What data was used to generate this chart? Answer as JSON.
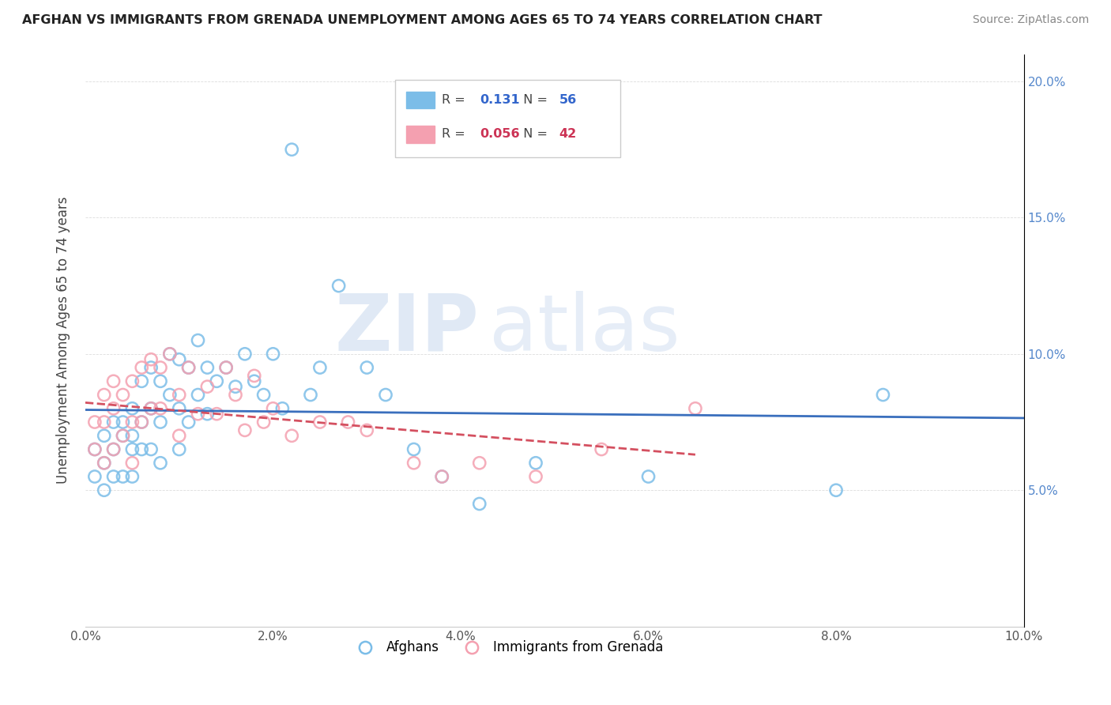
{
  "title": "AFGHAN VS IMMIGRANTS FROM GRENADA UNEMPLOYMENT AMONG AGES 65 TO 74 YEARS CORRELATION CHART",
  "source": "Source: ZipAtlas.com",
  "ylabel": "Unemployment Among Ages 65 to 74 years",
  "xlim": [
    0.0,
    0.1
  ],
  "ylim": [
    0.0,
    0.21
  ],
  "legend1_r": "0.131",
  "legend1_n": "56",
  "legend2_r": "0.056",
  "legend2_n": "42",
  "color_afghan": "#7bbde8",
  "color_grenada": "#f4a0b0",
  "trendline_afghan_color": "#3a6fbd",
  "trendline_grenada_color": "#d45060",
  "watermark_zip": "ZIP",
  "watermark_atlas": "atlas",
  "afghan_x": [
    0.001,
    0.001,
    0.002,
    0.002,
    0.002,
    0.003,
    0.003,
    0.003,
    0.004,
    0.004,
    0.004,
    0.005,
    0.005,
    0.005,
    0.005,
    0.006,
    0.006,
    0.006,
    0.007,
    0.007,
    0.007,
    0.008,
    0.008,
    0.008,
    0.009,
    0.009,
    0.01,
    0.01,
    0.01,
    0.011,
    0.011,
    0.012,
    0.012,
    0.013,
    0.013,
    0.014,
    0.015,
    0.016,
    0.017,
    0.018,
    0.019,
    0.02,
    0.021,
    0.022,
    0.024,
    0.025,
    0.027,
    0.03,
    0.032,
    0.035,
    0.038,
    0.042,
    0.048,
    0.06,
    0.08,
    0.085
  ],
  "afghan_y": [
    0.065,
    0.055,
    0.07,
    0.06,
    0.05,
    0.075,
    0.065,
    0.055,
    0.075,
    0.07,
    0.055,
    0.08,
    0.07,
    0.065,
    0.055,
    0.09,
    0.075,
    0.065,
    0.095,
    0.08,
    0.065,
    0.09,
    0.075,
    0.06,
    0.1,
    0.085,
    0.098,
    0.08,
    0.065,
    0.095,
    0.075,
    0.105,
    0.085,
    0.095,
    0.078,
    0.09,
    0.095,
    0.088,
    0.1,
    0.09,
    0.085,
    0.1,
    0.08,
    0.175,
    0.085,
    0.095,
    0.125,
    0.095,
    0.085,
    0.065,
    0.055,
    0.045,
    0.06,
    0.055,
    0.05,
    0.085
  ],
  "grenada_x": [
    0.001,
    0.001,
    0.002,
    0.002,
    0.002,
    0.003,
    0.003,
    0.003,
    0.004,
    0.004,
    0.005,
    0.005,
    0.005,
    0.006,
    0.006,
    0.007,
    0.007,
    0.008,
    0.008,
    0.009,
    0.01,
    0.01,
    0.011,
    0.012,
    0.013,
    0.014,
    0.015,
    0.016,
    0.017,
    0.018,
    0.019,
    0.02,
    0.022,
    0.025,
    0.028,
    0.03,
    0.035,
    0.038,
    0.042,
    0.048,
    0.055,
    0.065
  ],
  "grenada_y": [
    0.075,
    0.065,
    0.085,
    0.075,
    0.06,
    0.09,
    0.08,
    0.065,
    0.085,
    0.07,
    0.09,
    0.075,
    0.06,
    0.095,
    0.075,
    0.098,
    0.08,
    0.095,
    0.08,
    0.1,
    0.085,
    0.07,
    0.095,
    0.078,
    0.088,
    0.078,
    0.095,
    0.085,
    0.072,
    0.092,
    0.075,
    0.08,
    0.07,
    0.075,
    0.075,
    0.072,
    0.06,
    0.055,
    0.06,
    0.055,
    0.065,
    0.08
  ]
}
